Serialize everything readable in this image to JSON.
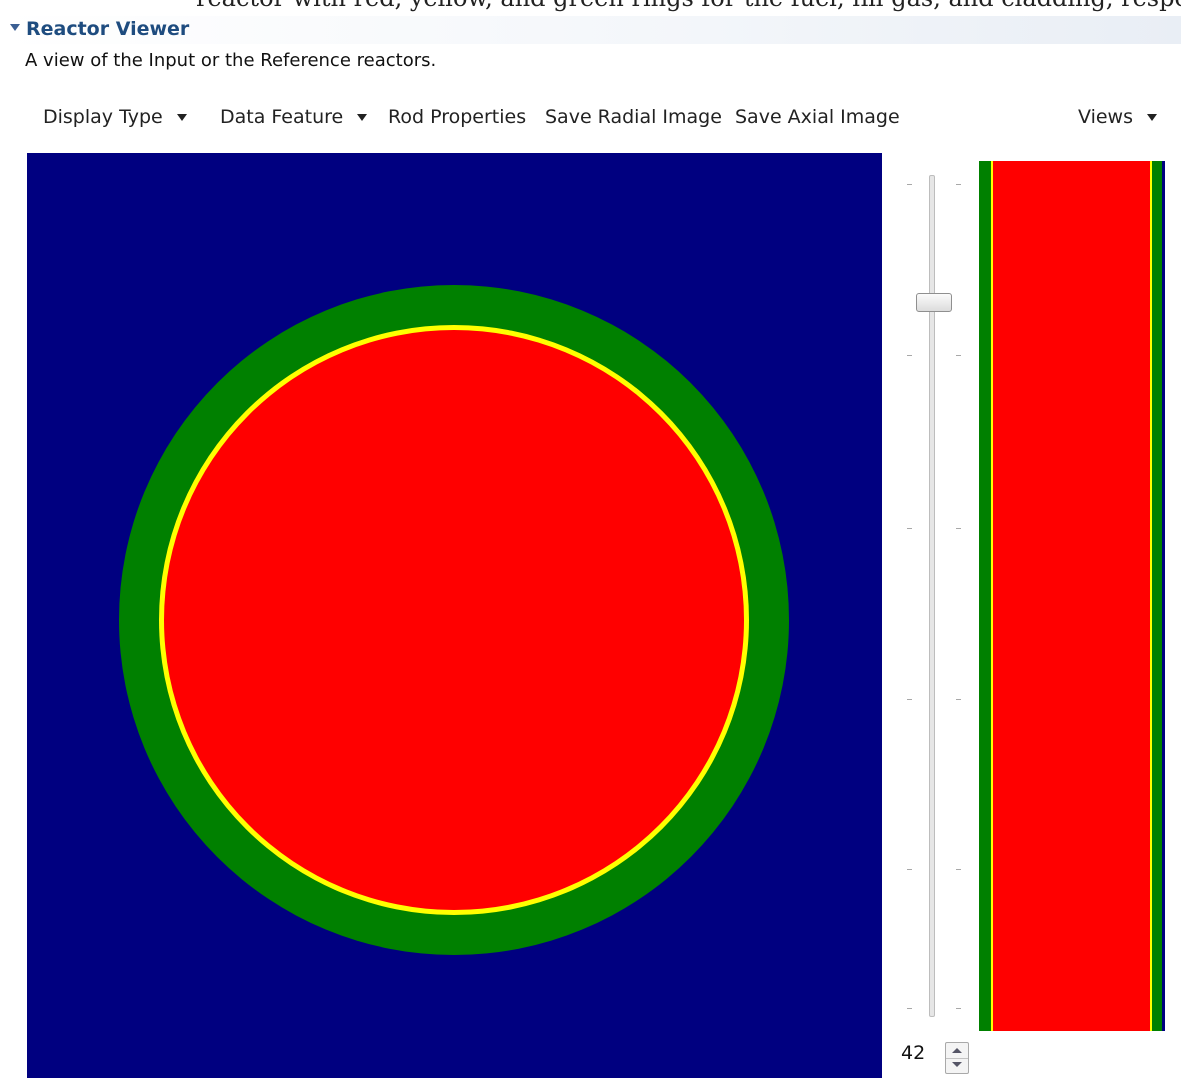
{
  "caption_fragment": "reactor with red, yellow, and green rings for the fuel, fill gas, and cladding, respectively",
  "section": {
    "title": "Reactor Viewer",
    "description": "A view of the Input or the Reference reactors."
  },
  "toolbar": {
    "display_type": "Display Type",
    "data_feature": "Data Feature",
    "rod_properties": "Rod Properties",
    "save_radial": "Save Radial Image",
    "save_axial": "Save Axial Image",
    "views": "Views"
  },
  "axial_level": {
    "value": "42",
    "slider_fraction": 0.15
  },
  "colors": {
    "coolant": "#000080",
    "cladding": "#008000",
    "fill_gas": "#ffff00",
    "fuel": "#ff0000"
  }
}
